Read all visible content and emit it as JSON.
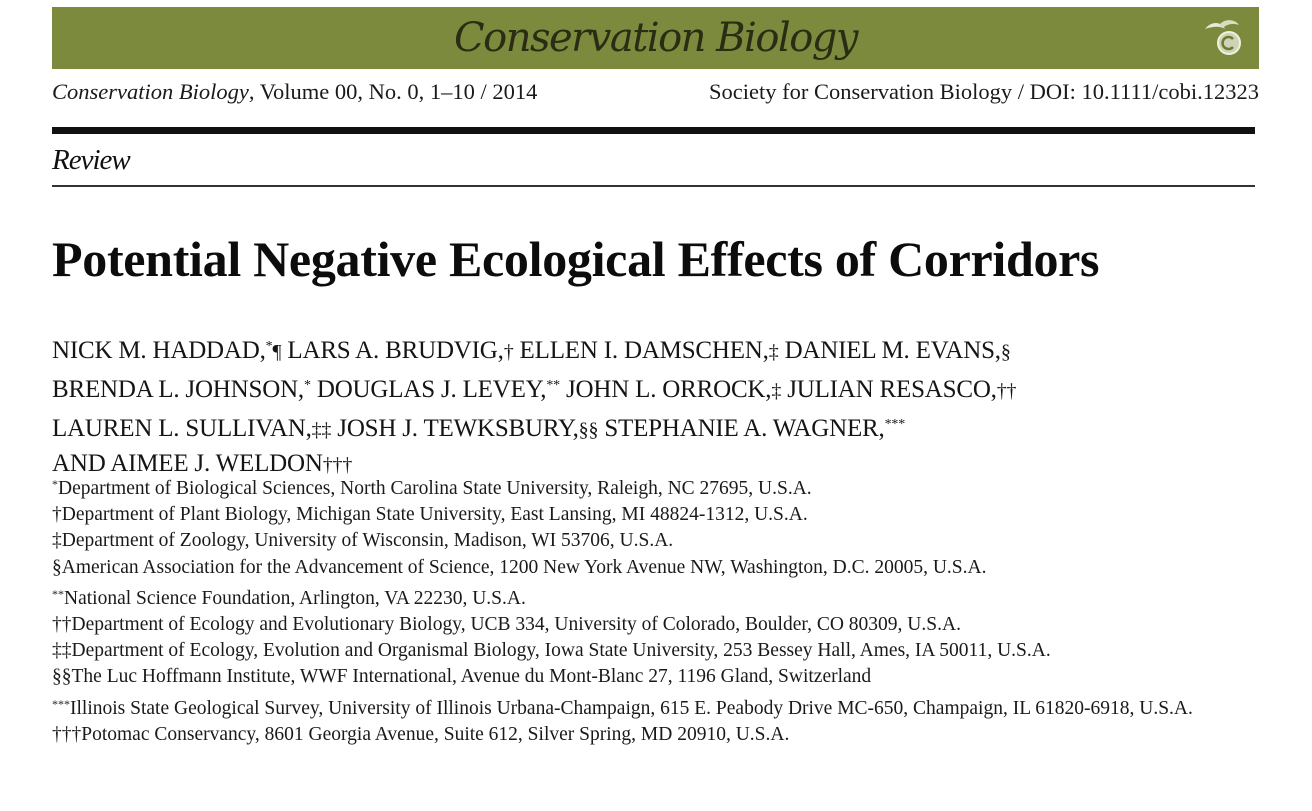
{
  "banner": {
    "journal": "Conservation Biology",
    "accent": "#7b8a3c",
    "logo_icon": "bird-copyright-icon"
  },
  "citation": {
    "journal": "Conservation Biology",
    "volume_info": ", Volume 00, No. 0, 1–10 / 2014",
    "publisher_doi": "Society for Conservation Biology / DOI: 10.1111/cobi.12323"
  },
  "section": "Review",
  "title": "Potential Negative Ecological Effects of Corridors",
  "authors": {
    "line1": [
      {
        "name": "NICK M. HADDAD,",
        "mark": "*",
        "mark2": "¶"
      },
      {
        "name": " LARS A. BRUDVIG,",
        "mark": "†"
      },
      {
        "name": " ELLEN I. DAMSCHEN,",
        "mark": "‡"
      },
      {
        "name": " DANIEL M. EVANS,",
        "mark": "§"
      }
    ],
    "line2": [
      {
        "name": "BRENDA L. JOHNSON,",
        "mark": "*"
      },
      {
        "name": " DOUGLAS J. LEVEY,",
        "mark": "**"
      },
      {
        "name": " JOHN L. ORROCK,",
        "mark": "‡"
      },
      {
        "name": " JULIAN RESASCO,",
        "mark": "††"
      }
    ],
    "line3": [
      {
        "name": "LAUREN L. SULLIVAN,",
        "mark": "‡‡"
      },
      {
        "name": " JOSH J. TEWKSBURY,",
        "mark": "§§"
      },
      {
        "name": " STEPHANIE A. WAGNER,",
        "mark": "***"
      }
    ],
    "line4": [
      {
        "name": "AND AIMEE J. WELDON",
        "mark": "†††"
      }
    ]
  },
  "affiliations": [
    {
      "mark": "*",
      "text": "Department of Biological Sciences, North Carolina State University, Raleigh, NC 27695, U.S.A."
    },
    {
      "mark": "†",
      "text": "Department of Plant Biology, Michigan State University, East Lansing, MI 48824-1312, U.S.A."
    },
    {
      "mark": "‡",
      "text": "Department of Zoology, University of Wisconsin, Madison, WI 53706, U.S.A."
    },
    {
      "mark": "§",
      "text": "American Association for the Advancement of Science, 1200 New York Avenue NW, Washington, D.C. 20005, U.S.A."
    },
    {
      "mark": "**",
      "text": "National Science Foundation, Arlington, VA 22230, U.S.A."
    },
    {
      "mark": "††",
      "text": "Department of Ecology and Evolutionary Biology, UCB 334, University of Colorado, Boulder, CO 80309, U.S.A."
    },
    {
      "mark": "‡‡",
      "text": "Department of Ecology, Evolution and Organismal Biology, Iowa State University, 253 Bessey Hall, Ames, IA 50011, U.S.A."
    },
    {
      "mark": "§§",
      "text": "The Luc Hoffmann Institute, WWF International, Avenue du Mont-Blanc 27, 1196 Gland, Switzerland"
    },
    {
      "mark": "***",
      "text": "Illinois State Geological Survey, University of Illinois Urbana-Champaign, 615 E. Peabody Drive MC-650, Champaign, IL 61820-6918, U.S.A."
    },
    {
      "mark": "†††",
      "text": "Potomac Conservancy, 8601 Georgia Avenue, Suite 612, Silver Spring, MD 20910, U.S.A."
    }
  ]
}
